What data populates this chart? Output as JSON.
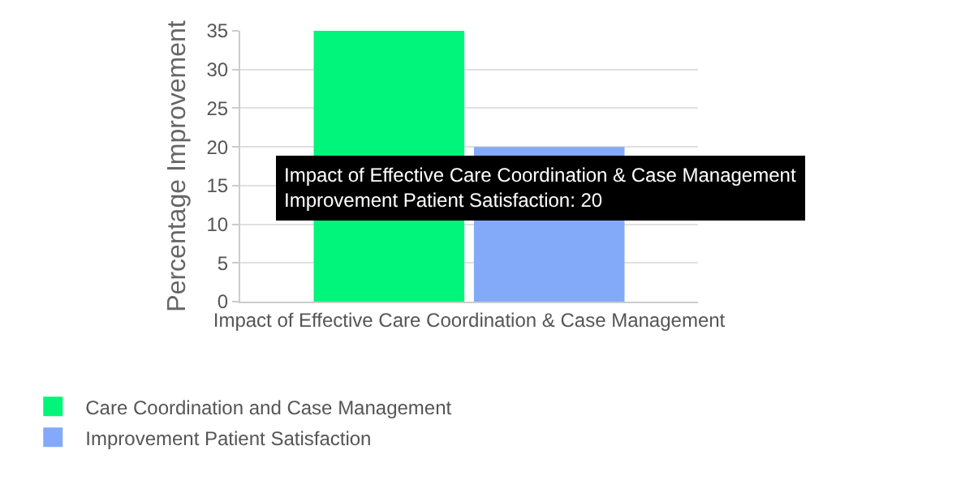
{
  "chart_data": {
    "type": "bar",
    "ylabel": "Percentage Improvement",
    "xlabel": "Impact of Effective Care Coordination & Case Management",
    "categories": [
      null
    ],
    "series": [
      {
        "name": "Care Coordination and Case Management",
        "color": "#00f57a",
        "values": [
          35
        ]
      },
      {
        "name": "Improvement Patient Satisfaction",
        "color": "#83a9f9",
        "values": [
          20
        ]
      }
    ],
    "ylim": [
      0,
      35
    ],
    "yticks": [
      0,
      5,
      10,
      15,
      20,
      25,
      30,
      35
    ],
    "grid": "y",
    "legend": "bottom",
    "annotations": [
      {
        "text": "Impact of Effective Care Coordination & Case Management\nImprovement Patient Satisfaction: 20",
        "y": 20
      }
    ]
  }
}
